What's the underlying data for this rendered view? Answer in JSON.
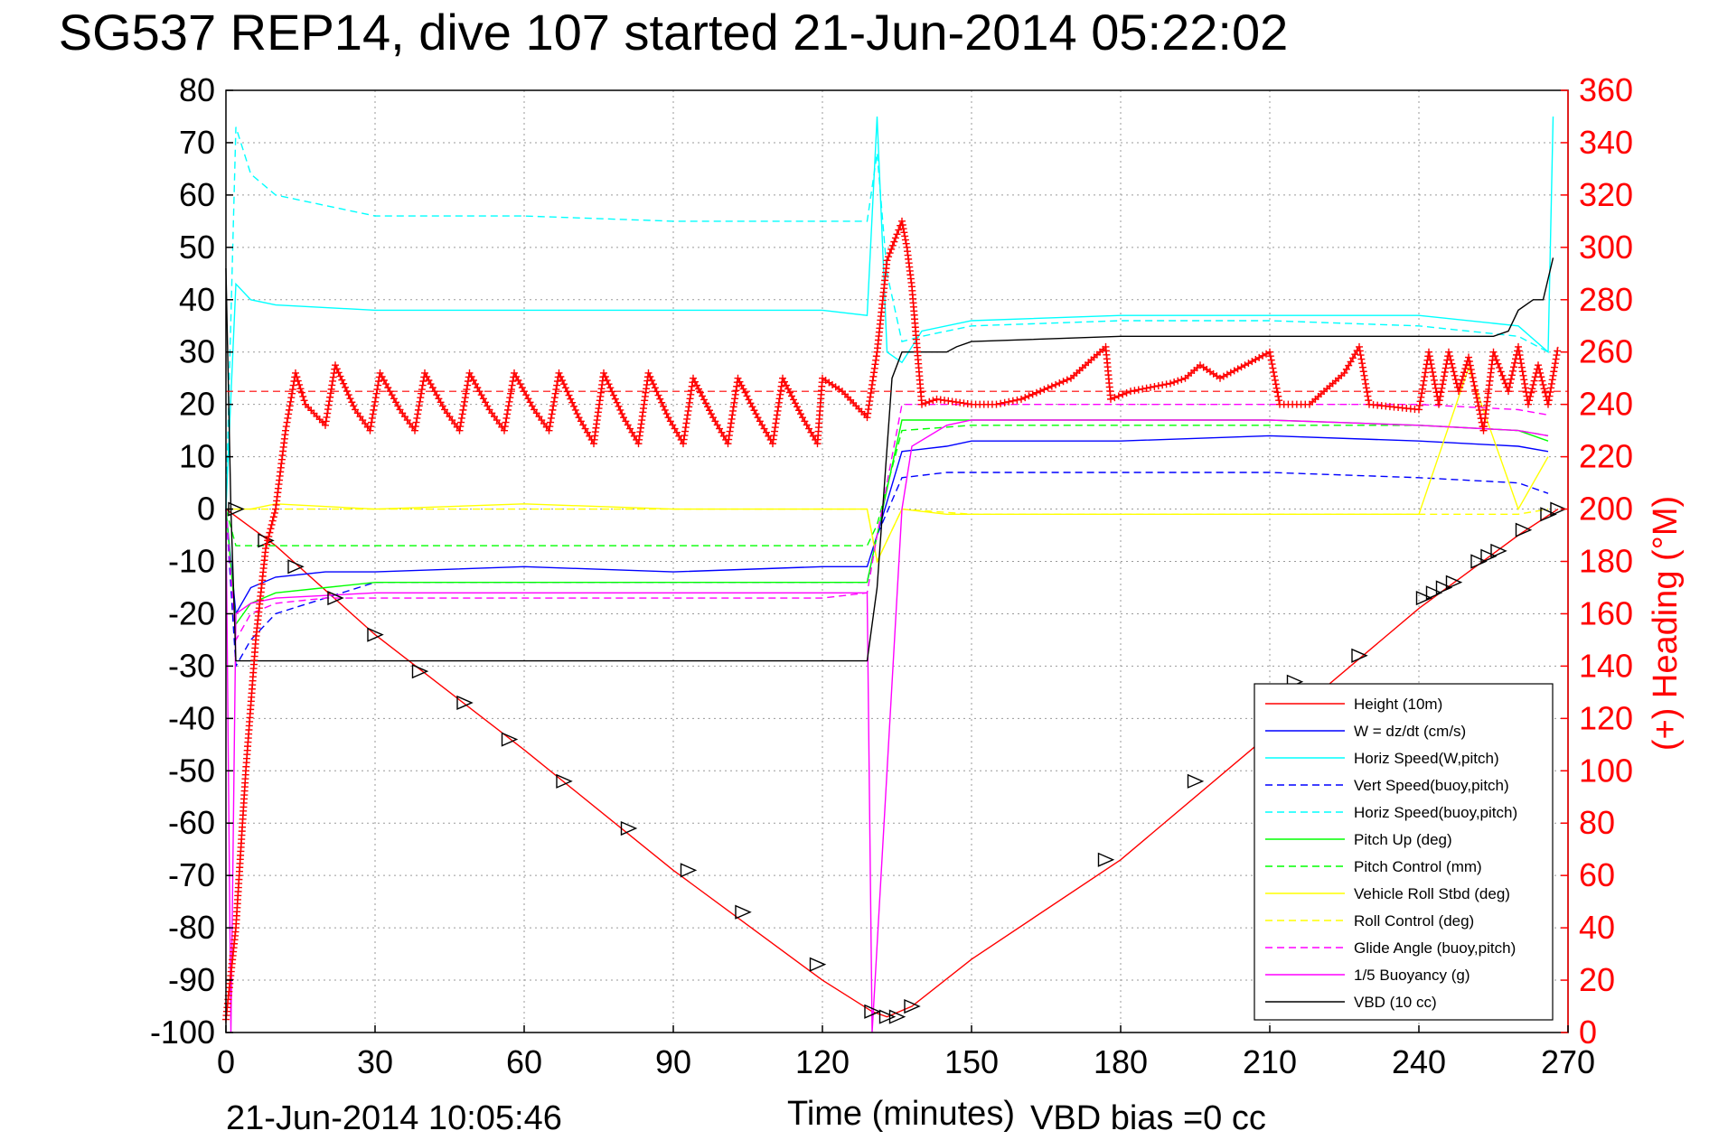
{
  "chart_data": {
    "type": "line",
    "title": "SG537 REP14, dive 107 started 21-Jun-2014 05:22:02",
    "xlabel": "Time (minutes)",
    "ylabel_right": "(+) Heading (°M)",
    "xlim": [
      0,
      270
    ],
    "ylim": [
      -100,
      80
    ],
    "ylim_right": [
      0,
      360
    ],
    "x_ticks": [
      0,
      30,
      60,
      90,
      120,
      150,
      180,
      210,
      240,
      270
    ],
    "y_ticks": [
      80,
      70,
      60,
      50,
      40,
      30,
      20,
      10,
      0,
      -10,
      -20,
      -30,
      -40,
      -50,
      -60,
      -70,
      -80,
      -90,
      -100
    ],
    "y_ticks_right": [
      360,
      340,
      320,
      300,
      280,
      260,
      240,
      220,
      200,
      180,
      160,
      140,
      120,
      100,
      80,
      60,
      40,
      20,
      0
    ],
    "grid": true,
    "legend_position": "bottom-right",
    "footer_left": "21-Jun-2014 10:05:46",
    "footer_right": "VBD bias =0 cc",
    "colors": {
      "red": "#ff0000",
      "blue": "#0000ff",
      "cyan": "#00ffff",
      "green": "#00ff00",
      "yellow": "#ffff00",
      "magenta": "#ff00ff",
      "black": "#000000"
    },
    "series": [
      {
        "name": "Height (10m)",
        "color": "#ff0000",
        "style": "solid",
        "x": [
          0,
          10,
          30,
          60,
          90,
          120,
          130,
          133,
          138,
          150,
          180,
          210,
          240,
          260,
          268
        ],
        "y": [
          0,
          -7,
          -24,
          -46,
          -69,
          -90,
          -96,
          -97,
          -95,
          -86,
          -67,
          -43,
          -19,
          -5,
          0
        ]
      },
      {
        "name": "W = dz/dt (cm/s)",
        "color": "#0000ff",
        "style": "solid",
        "x": [
          0,
          2,
          5,
          10,
          20,
          30,
          60,
          90,
          120,
          129,
          131,
          136,
          145,
          150,
          180,
          210,
          240,
          260,
          266
        ],
        "y": [
          0,
          -20,
          -15,
          -13,
          -12,
          -12,
          -11,
          -12,
          -11,
          -11,
          -5,
          11,
          12,
          13,
          13,
          14,
          13,
          12,
          11
        ]
      },
      {
        "name": "Horiz Speed(W,pitch)",
        "color": "#00ffff",
        "style": "solid",
        "x": [
          0,
          2,
          5,
          10,
          30,
          60,
          90,
          120,
          129,
          131,
          133,
          136,
          140,
          150,
          180,
          210,
          240,
          260,
          266,
          267
        ],
        "y": [
          0,
          43,
          40,
          39,
          38,
          38,
          38,
          38,
          37,
          75,
          30,
          28,
          34,
          36,
          37,
          37,
          37,
          35,
          30,
          75
        ]
      },
      {
        "name": "Vert Speed(buoy,pitch)",
        "color": "#0000ff",
        "style": "dashed",
        "x": [
          0,
          2,
          5,
          10,
          30,
          60,
          90,
          120,
          129,
          131,
          136,
          145,
          150,
          180,
          210,
          240,
          260,
          266
        ],
        "y": [
          0,
          -30,
          -25,
          -20,
          -14,
          -14,
          -14,
          -14,
          -14,
          -5,
          6,
          7,
          7,
          7,
          7,
          6,
          5,
          3
        ]
      },
      {
        "name": "Horiz Speed(buoy,pitch)",
        "color": "#00ffff",
        "style": "dashed",
        "x": [
          0,
          2,
          5,
          10,
          20,
          30,
          60,
          90,
          120,
          129,
          131,
          133,
          136,
          140,
          150,
          180,
          210,
          240,
          260,
          266
        ],
        "y": [
          0,
          73,
          64,
          60,
          58,
          56,
          56,
          55,
          55,
          55,
          68,
          45,
          32,
          33,
          35,
          36,
          36,
          35,
          33,
          30
        ]
      },
      {
        "name": "Pitch Up (deg)",
        "color": "#00ff00",
        "style": "solid",
        "x": [
          0,
          2,
          5,
          10,
          20,
          30,
          60,
          90,
          120,
          129,
          131,
          136,
          145,
          150,
          180,
          210,
          240,
          260,
          266
        ],
        "y": [
          0,
          -22,
          -18,
          -16,
          -15,
          -14,
          -14,
          -14,
          -14,
          -14,
          -5,
          17,
          17,
          17,
          17,
          17,
          16,
          15,
          13
        ]
      },
      {
        "name": "Pitch Control (mm)",
        "color": "#00ff00",
        "style": "dashed",
        "x": [
          0,
          2,
          10,
          30,
          60,
          90,
          120,
          129,
          131,
          136,
          150,
          180,
          210,
          240,
          260,
          266
        ],
        "y": [
          0,
          -7,
          -7,
          -7,
          -7,
          -7,
          -7,
          -7,
          -3,
          15,
          16,
          16,
          16,
          16,
          15,
          14
        ]
      },
      {
        "name": "Vehicle Roll Stbd (deg)",
        "color": "#ffff00",
        "style": "solid",
        "x": [
          0,
          2,
          5,
          10,
          30,
          60,
          90,
          120,
          129,
          131,
          136,
          145,
          150,
          180,
          210,
          240,
          250,
          260,
          266
        ],
        "y": [
          0,
          0,
          0,
          1,
          0,
          1,
          0,
          0,
          0,
          -10,
          0,
          -1,
          -1,
          -1,
          -1,
          -1,
          27,
          0,
          10
        ]
      },
      {
        "name": "Roll Control (deg)",
        "color": "#ffff00",
        "style": "dashed",
        "x": [
          0,
          2,
          10,
          30,
          60,
          90,
          120,
          129,
          131,
          136,
          150,
          180,
          210,
          240,
          260,
          266
        ],
        "y": [
          0,
          0,
          0,
          0,
          0,
          0,
          0,
          0,
          -10,
          0,
          -1,
          -1,
          -1,
          -1,
          -1,
          0
        ]
      },
      {
        "name": "Glide Angle (buoy,pitch)",
        "color": "#ff00ff",
        "style": "dashed",
        "x": [
          0,
          2,
          5,
          10,
          20,
          30,
          60,
          90,
          120,
          129,
          131,
          136,
          145,
          150,
          180,
          210,
          240,
          260,
          266
        ],
        "y": [
          0,
          -25,
          -20,
          -18,
          -17,
          -17,
          -17,
          -17,
          -17,
          -16,
          -5,
          20,
          20,
          20,
          20,
          20,
          20,
          19,
          18
        ]
      },
      {
        "name": "1/5 Buoyancy (g)",
        "color": "#ff00ff",
        "style": "solid",
        "x": [
          0,
          1,
          2,
          5,
          10,
          30,
          60,
          90,
          120,
          129,
          130,
          133,
          136,
          138,
          145,
          150,
          180,
          210,
          240,
          260,
          266
        ],
        "y": [
          0,
          -100,
          -20,
          -18,
          -17,
          -16,
          -16,
          -16,
          -16,
          -16,
          -100,
          -50,
          0,
          12,
          16,
          17,
          17,
          17,
          16,
          15,
          14
        ]
      },
      {
        "name": "VBD (10 cc)",
        "color": "#000000",
        "style": "solid",
        "x": [
          0,
          1,
          2,
          3,
          30,
          60,
          90,
          120,
          129,
          131,
          134,
          136,
          145,
          147,
          150,
          180,
          210,
          240,
          255,
          258,
          260,
          263,
          265,
          267
        ],
        "y": [
          46,
          0,
          -29,
          -29,
          -29,
          -29,
          -29,
          -29,
          -29,
          -15,
          25,
          30,
          30,
          31,
          32,
          33,
          33,
          33,
          33,
          34,
          38,
          40,
          40,
          48
        ]
      }
    ],
    "heading": {
      "name": "(+) Heading (°M)",
      "color": "#ff0000",
      "marker": "+",
      "reference_heading_deg": 245,
      "x": [
        0,
        2,
        4,
        6,
        8,
        10,
        12,
        14,
        16,
        20,
        22,
        26,
        29,
        31,
        35,
        38,
        40,
        44,
        47,
        49,
        53,
        56,
        58,
        62,
        65,
        67,
        71,
        74,
        76,
        80,
        83,
        85,
        89,
        92,
        94,
        98,
        101,
        103,
        107,
        110,
        112,
        116,
        119,
        120,
        124,
        129,
        131,
        133,
        135,
        136,
        137,
        138,
        140,
        143,
        150,
        155,
        160,
        170,
        177,
        178,
        182,
        190,
        193,
        196,
        200,
        205,
        210,
        212,
        218,
        225,
        228,
        230,
        240,
        242,
        244,
        246,
        248,
        250,
        253,
        255,
        258,
        260,
        262,
        264,
        266,
        268
      ],
      "y": [
        5,
        40,
        100,
        150,
        185,
        200,
        230,
        252,
        240,
        232,
        255,
        238,
        230,
        252,
        238,
        230,
        252,
        238,
        230,
        252,
        238,
        230,
        252,
        238,
        230,
        252,
        235,
        225,
        252,
        235,
        225,
        252,
        235,
        225,
        250,
        235,
        225,
        250,
        235,
        225,
        250,
        235,
        225,
        250,
        245,
        235,
        260,
        295,
        305,
        310,
        300,
        285,
        240,
        242,
        240,
        240,
        242,
        250,
        262,
        242,
        245,
        248,
        250,
        255,
        250,
        255,
        260,
        240,
        240,
        252,
        262,
        240,
        238,
        260,
        240,
        260,
        245,
        258,
        230,
        260,
        245,
        262,
        240,
        255,
        240,
        262
      ]
    },
    "depth_markers": {
      "style": "triangle",
      "color": "#000000",
      "x": [
        2,
        8,
        14,
        22,
        30,
        39,
        48,
        57,
        68,
        81,
        93,
        104,
        119,
        130,
        133,
        135,
        138,
        177,
        195,
        215,
        228,
        241,
        243,
        245,
        247,
        252,
        254,
        256,
        261,
        266,
        268
      ],
      "y": [
        0,
        -6,
        -11,
        -17,
        -24,
        -31,
        -37,
        -44,
        -52,
        -61,
        -69,
        -77,
        -87,
        -96,
        -97,
        -97,
        -95,
        -67,
        -52,
        -33,
        -28,
        -17,
        -16,
        -15,
        -14,
        -10,
        -9,
        -8,
        -4,
        -1,
        0
      ]
    }
  }
}
